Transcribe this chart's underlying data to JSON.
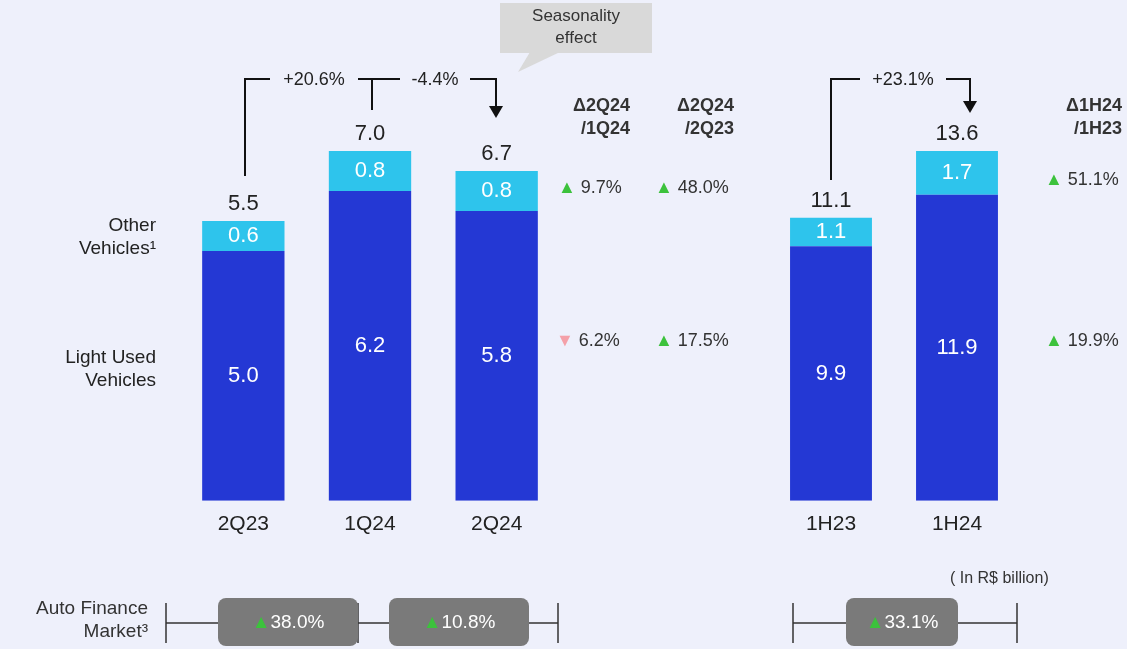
{
  "chart_data": [
    {
      "type": "bar",
      "stacked": true,
      "tick_labels": "x",
      "categories": [
        "2Q23",
        "1Q24",
        "2Q24"
      ],
      "series": [
        {
          "name": "Light Used Vehicles",
          "color": "#2438d4",
          "values": [
            5.0,
            6.2,
            5.8
          ],
          "value_labels": [
            "5.0",
            "6.2",
            "5.8"
          ]
        },
        {
          "name": "Other Vehicles¹",
          "color": "#2ec4ec",
          "values": [
            0.6,
            0.8,
            0.8
          ],
          "value_labels": [
            "0.6",
            "0.8",
            "0.8"
          ]
        }
      ],
      "totals": [
        "5.5",
        "7.0",
        "6.7"
      ],
      "annotations": [
        "Seasonality effect",
        "+20.6%",
        "-4.4%",
        "Δ2Q24 /1Q24",
        "Δ2Q24 /2Q23",
        "▲ 9.7%",
        "▲ 48.0%",
        "▼ 6.2%",
        "▲ 17.5%",
        "Auto Finance Market³",
        "▲38.0%",
        "▲10.8%"
      ]
    },
    {
      "type": "bar",
      "stacked": true,
      "tick_labels": "x",
      "categories": [
        "1H23",
        "1H24"
      ],
      "series": [
        {
          "color": "#2438d4",
          "values": [
            9.9,
            11.9
          ],
          "value_labels": [
            "9.9",
            "11.9"
          ]
        },
        {
          "color": "#2ec4ec",
          "values": [
            1.1,
            1.7
          ],
          "value_labels": [
            "1.1",
            "1.7"
          ]
        }
      ],
      "totals": [
        "11.1",
        "13.6"
      ],
      "annotations": [
        "+23.1%",
        "Δ1H24 /1H23",
        "▲ 51.1%",
        "▲ 19.9%",
        "( In R$ billion)",
        "▲33.1%"
      ]
    }
  ]
}
